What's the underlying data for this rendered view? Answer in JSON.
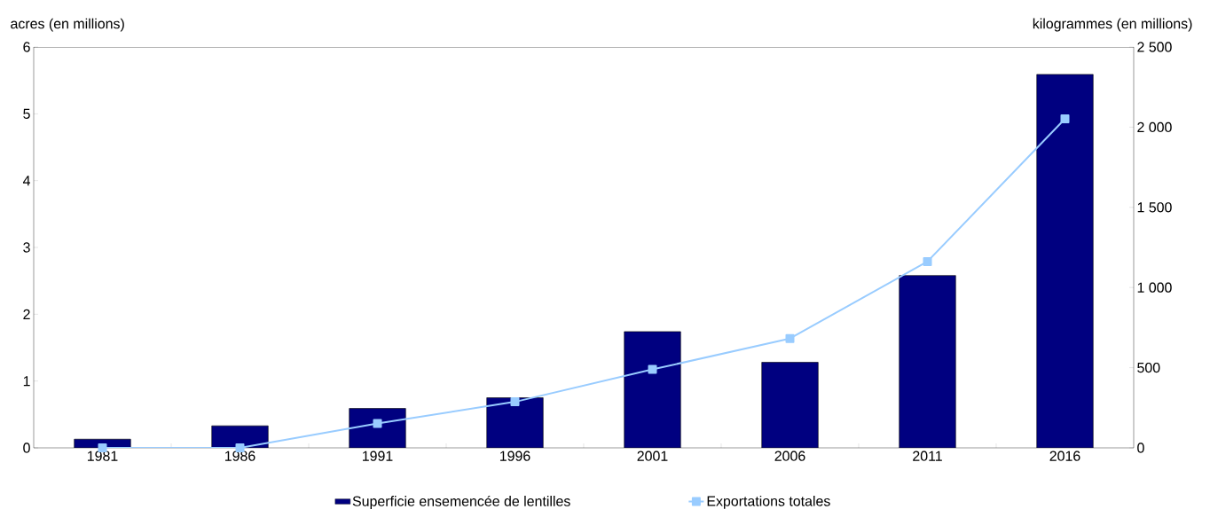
{
  "chart_data": {
    "type": "bar",
    "categories": [
      "1981",
      "1986",
      "1991",
      "1996",
      "2001",
      "2006",
      "2011",
      "2016"
    ],
    "ylabel": "acres (en millions)",
    "y2label": "kilogrammes (en millions)",
    "ylim": [
      0,
      6
    ],
    "yticks": [
      0,
      1,
      2,
      3,
      4,
      5,
      6
    ],
    "y2lim": [
      0,
      2500
    ],
    "y2ticks": [
      0,
      500,
      {
        "value": 1000,
        "label": "1 000"
      },
      {
        "value": 1500,
        "label": "1 500"
      },
      {
        "value": 2000,
        "label": "2 000"
      },
      {
        "value": 2500,
        "label": "2 500"
      }
    ],
    "legend": "bottom",
    "grid": false,
    "series": [
      {
        "name": "Superficie ensemencée de lentilles",
        "color": "#000080",
        "values": [
          0.13,
          0.33,
          0.59,
          0.75,
          1.74,
          1.28,
          2.58,
          5.59
        ]
      },
      {
        "name": "Exportations totales",
        "type": "line",
        "axis": "y2",
        "marker": "square",
        "color": "#99ccff",
        "values": [
          0,
          0,
          152,
          287,
          489,
          682,
          1162,
          2052
        ]
      }
    ]
  }
}
